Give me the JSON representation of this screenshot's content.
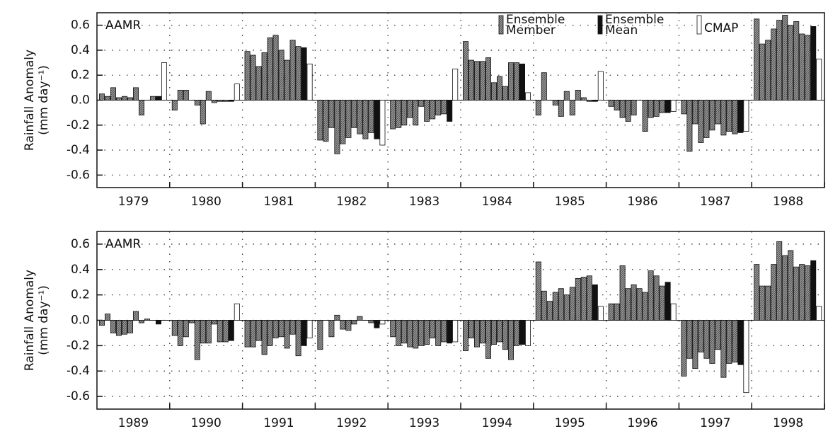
{
  "chart_data": [
    {
      "type": "bar",
      "annotation": "AAMR",
      "ylabel": [
        "Rainfall Anomaly",
        "(mm day⁻¹)"
      ],
      "categories": [
        "1979",
        "1980",
        "1981",
        "1982",
        "1983",
        "1984",
        "1985",
        "1986",
        "1987",
        "1988"
      ],
      "ylim": [
        -0.7,
        0.7
      ],
      "yticks": [
        -0.6,
        -0.4,
        -0.2,
        {
          "value": 0,
          "label": "0.0"
        },
        0.2,
        0.4,
        0.6
      ],
      "grid": true,
      "legend": "top-right",
      "series": [
        {
          "name": "Ensemble Member",
          "color": "#9a9a9a",
          "values": [
            [
              0.05,
              0.03,
              0.1,
              0.02,
              0.03,
              0.02,
              0.1,
              -0.12,
              0.0,
              0.03
            ],
            [
              -0.08,
              0.08,
              0.08,
              0.0,
              -0.04,
              -0.19,
              0.07,
              -0.02,
              -0.01,
              -0.01
            ],
            [
              0.39,
              0.36,
              0.27,
              0.38,
              0.5,
              0.52,
              0.4,
              0.32,
              0.48,
              0.43
            ],
            [
              -0.32,
              -0.33,
              -0.22,
              -0.43,
              -0.35,
              -0.3,
              -0.22,
              -0.27,
              -0.31,
              -0.26
            ],
            [
              -0.23,
              -0.22,
              -0.2,
              -0.14,
              -0.2,
              -0.05,
              -0.17,
              -0.15,
              -0.12,
              -0.11
            ],
            [
              0.47,
              0.32,
              0.31,
              0.31,
              0.34,
              0.14,
              0.19,
              0.11,
              0.3,
              0.3
            ],
            [
              -0.12,
              0.22,
              0.0,
              -0.04,
              -0.13,
              0.07,
              -0.12,
              0.08,
              0.02,
              -0.01
            ],
            [
              -0.05,
              -0.08,
              -0.14,
              -0.17,
              -0.12,
              0.0,
              -0.25,
              -0.14,
              -0.13,
              -0.1
            ],
            [
              -0.11,
              -0.41,
              -0.19,
              -0.34,
              -0.3,
              -0.24,
              -0.19,
              -0.28,
              -0.25,
              -0.27
            ],
            [
              0.65,
              0.45,
              0.48,
              0.57,
              0.64,
              0.68,
              0.6,
              0.63,
              0.53,
              0.52
            ]
          ]
        },
        {
          "name": "Ensemble Mean",
          "color": "#111111",
          "values": [
            0.03,
            -0.01,
            0.42,
            -0.31,
            -0.17,
            0.29,
            -0.01,
            -0.1,
            -0.26,
            0.59
          ]
        },
        {
          "name": "CMAP",
          "color": "#ffffff",
          "values": [
            0.3,
            0.13,
            0.29,
            -0.36,
            0.25,
            0.06,
            0.23,
            -0.09,
            -0.25,
            0.33
          ]
        }
      ]
    },
    {
      "type": "bar",
      "annotation": "AAMR",
      "ylabel": [
        "Rainfall Anomaly",
        "(mm day⁻¹)"
      ],
      "categories": [
        "1989",
        "1990",
        "1991",
        "1992",
        "1993",
        "1994",
        "1995",
        "1996",
        "1997",
        "1998"
      ],
      "ylim": [
        -0.7,
        0.7
      ],
      "yticks": [
        -0.6,
        -0.4,
        -0.2,
        {
          "value": 0,
          "label": "0.0"
        },
        0.2,
        0.4,
        0.6
      ],
      "grid": true,
      "series": [
        {
          "name": "Ensemble Member",
          "color": "#9a9a9a",
          "values": [
            [
              -0.04,
              0.05,
              -0.1,
              -0.12,
              -0.11,
              -0.1,
              0.07,
              -0.02,
              0.01,
              0.0
            ],
            [
              -0.12,
              -0.2,
              -0.13,
              -0.02,
              -0.31,
              -0.18,
              -0.18,
              -0.03,
              -0.17,
              -0.17
            ],
            [
              -0.21,
              -0.21,
              -0.16,
              -0.27,
              -0.2,
              -0.14,
              -0.13,
              -0.22,
              -0.11,
              -0.28
            ],
            [
              -0.23,
              0.0,
              -0.13,
              0.04,
              -0.07,
              -0.08,
              -0.03,
              0.03,
              0.0,
              -0.02
            ],
            [
              -0.13,
              -0.2,
              -0.18,
              -0.21,
              -0.22,
              -0.2,
              -0.19,
              -0.14,
              -0.2,
              -0.17
            ],
            [
              -0.24,
              -0.14,
              -0.21,
              -0.18,
              -0.3,
              -0.19,
              -0.17,
              -0.23,
              -0.31,
              -0.2
            ],
            [
              0.46,
              0.23,
              0.15,
              0.22,
              0.25,
              0.2,
              0.26,
              0.33,
              0.34,
              0.35
            ],
            [
              0.13,
              0.13,
              0.43,
              0.25,
              0.28,
              0.25,
              0.22,
              0.39,
              0.35,
              0.27
            ],
            [
              -0.44,
              -0.3,
              -0.38,
              -0.25,
              -0.3,
              -0.34,
              -0.23,
              -0.45,
              -0.34,
              -0.33
            ],
            [
              0.44,
              0.27,
              0.27,
              0.44,
              0.62,
              0.51,
              0.55,
              0.42,
              0.44,
              0.43
            ]
          ]
        },
        {
          "name": "Ensemble Mean",
          "color": "#111111",
          "values": [
            -0.03,
            -0.16,
            -0.2,
            -0.06,
            -0.18,
            -0.19,
            0.28,
            0.3,
            -0.35,
            0.47
          ]
        },
        {
          "name": "CMAP",
          "color": "#ffffff",
          "values": [
            0.0,
            0.13,
            -0.14,
            -0.03,
            -0.17,
            -0.2,
            0.11,
            0.13,
            -0.57,
            0.11
          ]
        }
      ]
    }
  ]
}
